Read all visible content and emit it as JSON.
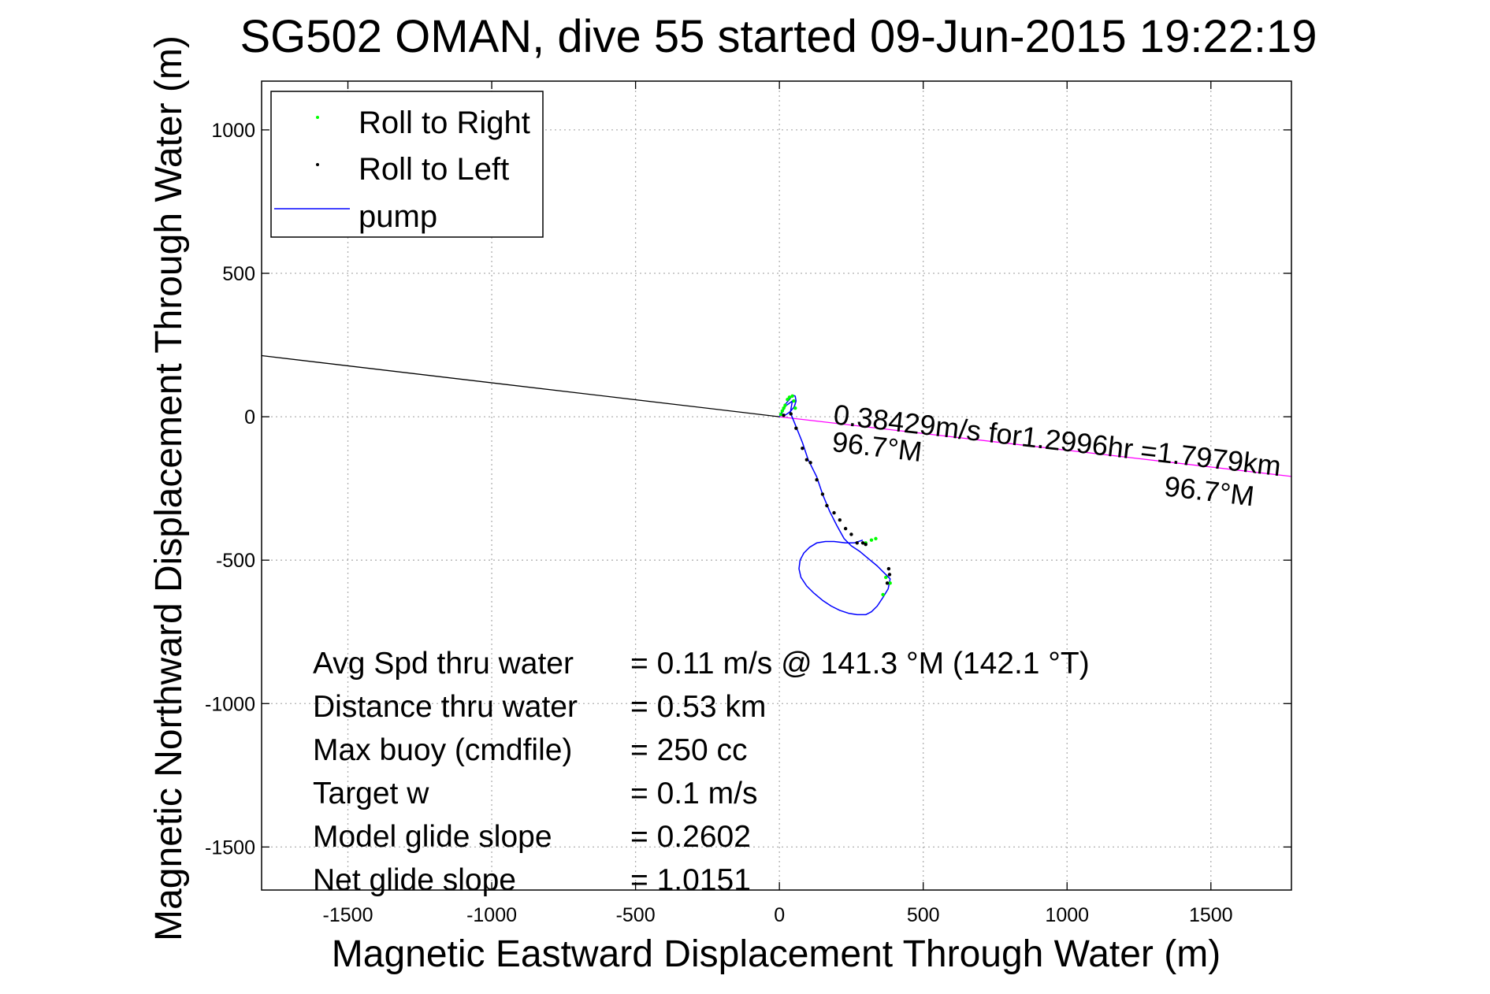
{
  "chart_data": {
    "type": "line",
    "title": "SG502 OMAN, dive 55 started 09-Jun-2015 19:22:19",
    "xlabel": "Magnetic Eastward Displacement Through Water (m)",
    "ylabel": "Magnetic Northward Displacement Through Water (m)",
    "xlim": [
      -1800,
      1780
    ],
    "ylim": [
      -1650,
      1170
    ],
    "xticks": [
      -1500,
      -1000,
      -500,
      0,
      500,
      1000,
      1500
    ],
    "yticks": [
      -1500,
      -1000,
      -500,
      0,
      500,
      1000
    ],
    "grid": true,
    "legend_position": "top-left",
    "legend": [
      {
        "label": "Roll to Right",
        "color": "#00ff00",
        "marker": "dot"
      },
      {
        "label": "Roll to Left",
        "color": "#000000",
        "marker": "dot"
      },
      {
        "label": "pump",
        "color": "#0000ff",
        "marker": "line"
      }
    ],
    "series": [
      {
        "name": "pump",
        "color": "#0000ff",
        "x": [
          0,
          10,
          22,
          35,
          42,
          48,
          55,
          58,
          52,
          38,
          24,
          14,
          8,
          22,
          45,
          38,
          60,
          80,
          100,
          130,
          150,
          175,
          200,
          225,
          250,
          280,
          310,
          340,
          360,
          375,
          385,
          378,
          360,
          340,
          320,
          300,
          270,
          240,
          210,
          180,
          150,
          120,
          95,
          75,
          68,
          72,
          85,
          105,
          130,
          160,
          190,
          230,
          260,
          290
        ],
        "y": [
          0,
          22,
          45,
          60,
          70,
          75,
          72,
          55,
          35,
          18,
          8,
          4,
          12,
          38,
          55,
          15,
          -40,
          -90,
          -150,
          -210,
          -270,
          -330,
          -380,
          -425,
          -450,
          -470,
          -495,
          -520,
          -540,
          -555,
          -565,
          -600,
          -630,
          -660,
          -680,
          -690,
          -690,
          -685,
          -675,
          -660,
          -640,
          -615,
          -590,
          -560,
          -530,
          -500,
          -475,
          -455,
          -440,
          -435,
          -435,
          -440,
          -440,
          -430
        ]
      },
      {
        "name": "Roll to Right",
        "color": "#00ff00",
        "x": [
          5,
          10,
          15,
          20,
          28,
          35,
          45,
          50,
          55,
          300,
          320,
          335,
          370,
          385,
          360
        ],
        "y": [
          8,
          20,
          30,
          40,
          60,
          68,
          72,
          55,
          30,
          -440,
          -430,
          -425,
          -560,
          -580,
          -620
        ]
      },
      {
        "name": "Roll to Left",
        "color": "#000000",
        "x": [
          15,
          40,
          58,
          80,
          95,
          108,
          130,
          150,
          165,
          190,
          210,
          230,
          250,
          270,
          290,
          300,
          380,
          383,
          375
        ],
        "y": [
          5,
          10,
          -40,
          -110,
          -150,
          -160,
          -220,
          -270,
          -310,
          -335,
          -360,
          -390,
          -410,
          -440,
          -440,
          -445,
          -530,
          -550,
          -580
        ]
      }
    ],
    "current_line": {
      "x": [
        0,
        -1800
      ],
      "y": [
        0,
        213
      ],
      "color": "#000000"
    },
    "drift_line": {
      "x": [
        0,
        1780
      ],
      "y": [
        0,
        -208
      ],
      "color": "#ff00ff"
    },
    "annotations": [
      {
        "text": "0.38429m/s for1.2996hr =1.7979km",
        "x": 185,
        "y": -25
      },
      {
        "text": "96.7°M",
        "x": 180,
        "y": -120
      },
      {
        "text": "96.7°M",
        "x": 1335,
        "y": -275
      }
    ],
    "stats": [
      {
        "label": "Avg Spd thru water",
        "value": "=  0.11 m/s @ 141.3 °M (142.1 °T)"
      },
      {
        "label": "Distance thru water",
        "value": "=  0.53 km"
      },
      {
        "label": "Max buoy (cmdfile)",
        "value": "= 250 cc"
      },
      {
        "label": "Target w",
        "value": "= 0.1 m/s"
      },
      {
        "label": "Model glide slope",
        "value": "= 0.2602"
      },
      {
        "label": "Net glide slope",
        "value": "= 1.0151"
      }
    ]
  }
}
